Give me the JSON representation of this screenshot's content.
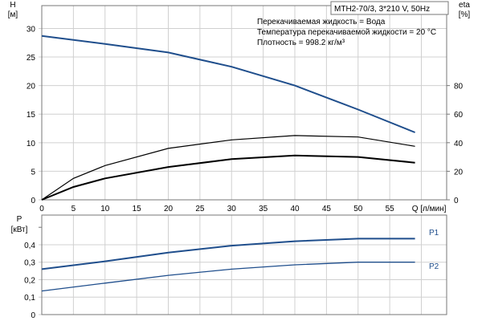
{
  "header": {
    "model": "MTH2-70/3, 3*210 V, 50Hz",
    "info": [
      "Перекачиваемая жидкость = Вода",
      "Температура перекачиваемой жидкости = 20 °C",
      "Плотность = 998.2 кг/м³"
    ]
  },
  "chart_data": [
    {
      "type": "line",
      "xlabel": "Q [л/мин]",
      "ylabel": "H [м]",
      "y2label": "eta [%]",
      "xlim": [
        0,
        64
      ],
      "ylim": [
        0,
        34
      ],
      "y2lim": [
        0,
        136
      ],
      "xticks": [
        0,
        5,
        10,
        15,
        20,
        25,
        30,
        35,
        40,
        45,
        50,
        55
      ],
      "yticks": [
        0,
        5,
        10,
        15,
        20,
        25,
        30
      ],
      "y2ticks": [
        0,
        20,
        40,
        60,
        80
      ],
      "grid": true,
      "colors": {
        "head": "#1f4e8c",
        "eta": "#000000"
      },
      "series": [
        {
          "axis": "H",
          "x": [
            0,
            10,
            20,
            30,
            40,
            50,
            59
          ],
          "y": [
            28.7,
            27.3,
            25.8,
            23.3,
            20,
            15.8,
            11.8
          ]
        },
        {
          "axis": "eta",
          "x": [
            0,
            5,
            10,
            20,
            30,
            40,
            50,
            59
          ],
          "y": [
            0,
            15,
            24,
            36,
            42,
            45,
            44,
            37.5
          ]
        },
        {
          "axis": "eta",
          "x": [
            0,
            5,
            10,
            20,
            30,
            40,
            50,
            59
          ],
          "y": [
            0,
            9,
            15,
            23,
            28.5,
            31,
            30,
            26
          ]
        }
      ]
    },
    {
      "type": "line",
      "xlabel": "",
      "ylabel": "P [кВт]",
      "xlim": [
        0,
        64
      ],
      "ylim": [
        0,
        0.57
      ],
      "yticks": [
        "0",
        "0,1",
        "0,2",
        "0,3",
        "0,4"
      ],
      "grid": true,
      "colors": {
        "power": "#1f4e8c"
      },
      "series": [
        {
          "name": "P1",
          "x": [
            0,
            10,
            20,
            30,
            40,
            50,
            59
          ],
          "y": [
            0.26,
            0.305,
            0.355,
            0.395,
            0.42,
            0.435,
            0.435
          ]
        },
        {
          "name": "P2",
          "x": [
            0,
            10,
            20,
            30,
            40,
            50,
            59
          ],
          "y": [
            0.135,
            0.18,
            0.225,
            0.26,
            0.285,
            0.3,
            0.3
          ]
        }
      ]
    }
  ]
}
